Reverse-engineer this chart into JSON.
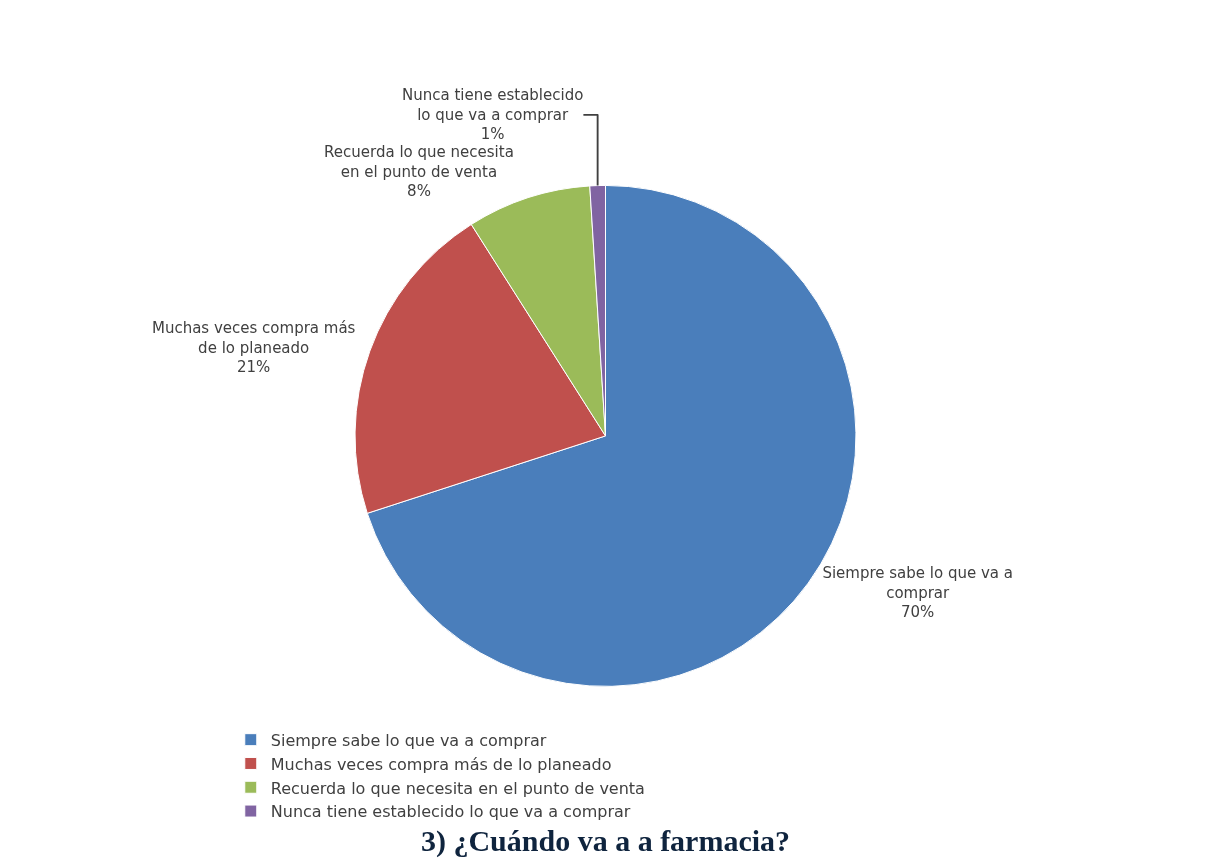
{
  "chart_data": {
    "type": "pie",
    "title": "3) ¿Cuándo va a a farmacia?",
    "categories": [
      "Siempre sabe lo que va a comprar",
      "Muchas veces compra más de lo planeado",
      "Recuerda lo que necesita en el punto de venta",
      "Nunca tiene establecido lo que va a comprar"
    ],
    "values": [
      70,
      21,
      8,
      1
    ],
    "colors": [
      "#4a7ebb",
      "#c0504d",
      "#9bbb59",
      "#8064a2"
    ],
    "value_labels": [
      "70%",
      "21%",
      "8%",
      "1%"
    ],
    "legend": "bottom"
  }
}
